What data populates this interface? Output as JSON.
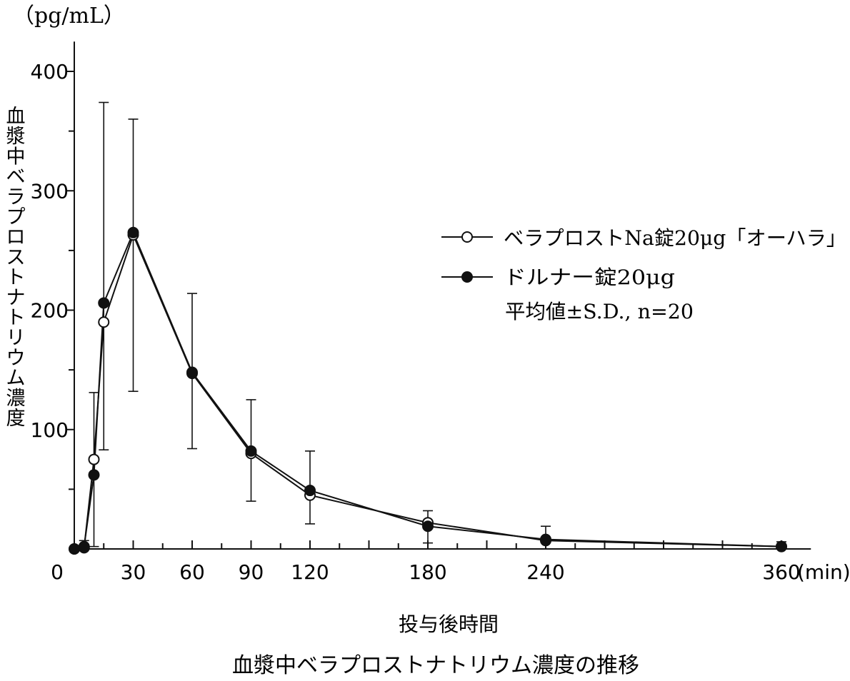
{
  "chart_data": {
    "type": "line",
    "title": "血漿中ベラプロストナトリウム濃度の推移",
    "xlabel": "投与後時間",
    "xunit": "(min)",
    "ylabel": "血漿中ベラプロストナトリウム濃度",
    "yunit": "（pg/mL）",
    "x_ticks": [
      0,
      30,
      60,
      90,
      120,
      180,
      240,
      360
    ],
    "y_ticks": [
      100,
      200,
      300,
      400
    ],
    "xlim": [
      0,
      375
    ],
    "ylim": [
      0,
      425
    ],
    "series": [
      {
        "name": "ベラプロストNa錠20μg「オーハラ」",
        "marker": "open-circle",
        "x": [
          0,
          5,
          10,
          15,
          30,
          60,
          90,
          120,
          180,
          240,
          360
        ],
        "y": [
          0,
          1,
          75,
          190,
          263,
          147,
          80,
          45,
          22,
          7,
          2
        ]
      },
      {
        "name": "ドルナー錠20μg",
        "marker": "filled-circle",
        "x": [
          0,
          5,
          10,
          15,
          30,
          60,
          90,
          120,
          180,
          240,
          360
        ],
        "y": [
          0,
          2,
          62,
          206,
          265,
          148,
          82,
          49,
          19,
          8,
          2
        ],
        "sd_upper": [
          0,
          7,
          131,
          374,
          360,
          214,
          125,
          82,
          32,
          19,
          6
        ],
        "sd_lower": [
          0,
          0,
          2,
          83,
          132,
          84,
          40,
          21,
          5,
          0,
          0
        ]
      }
    ],
    "note": "平均値±S.D., n=20",
    "legend_position": "right",
    "grid": false,
    "colors": {
      "line": "#111111",
      "background": "#ffffff"
    }
  }
}
